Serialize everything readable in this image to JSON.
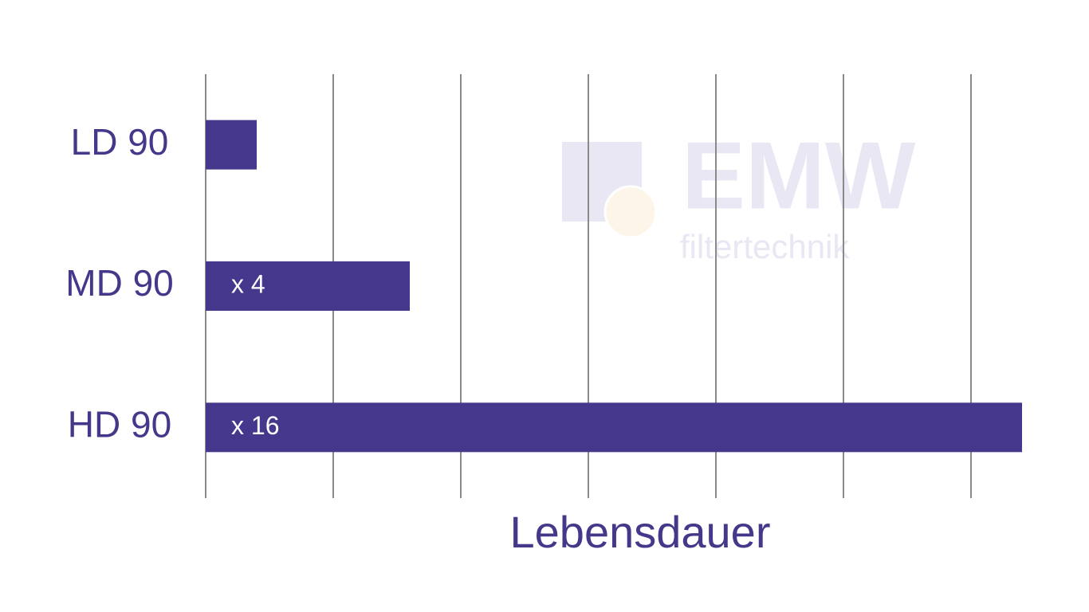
{
  "chart_data": {
    "type": "hbar",
    "x_label": "Lebensdauer",
    "categories": [
      "LD 90",
      "MD 90",
      "HD 90"
    ],
    "values": [
      1,
      4,
      16
    ],
    "value_labels": [
      null,
      "x 4",
      "x 16"
    ],
    "color": "#44378c",
    "xlim": [
      0,
      16
    ],
    "xticks": [
      0,
      2.5,
      5,
      7.5,
      10,
      12.5,
      15
    ],
    "grid": true,
    "watermark": {
      "logo": "EMW",
      "tagline": "filtertechnik"
    }
  }
}
